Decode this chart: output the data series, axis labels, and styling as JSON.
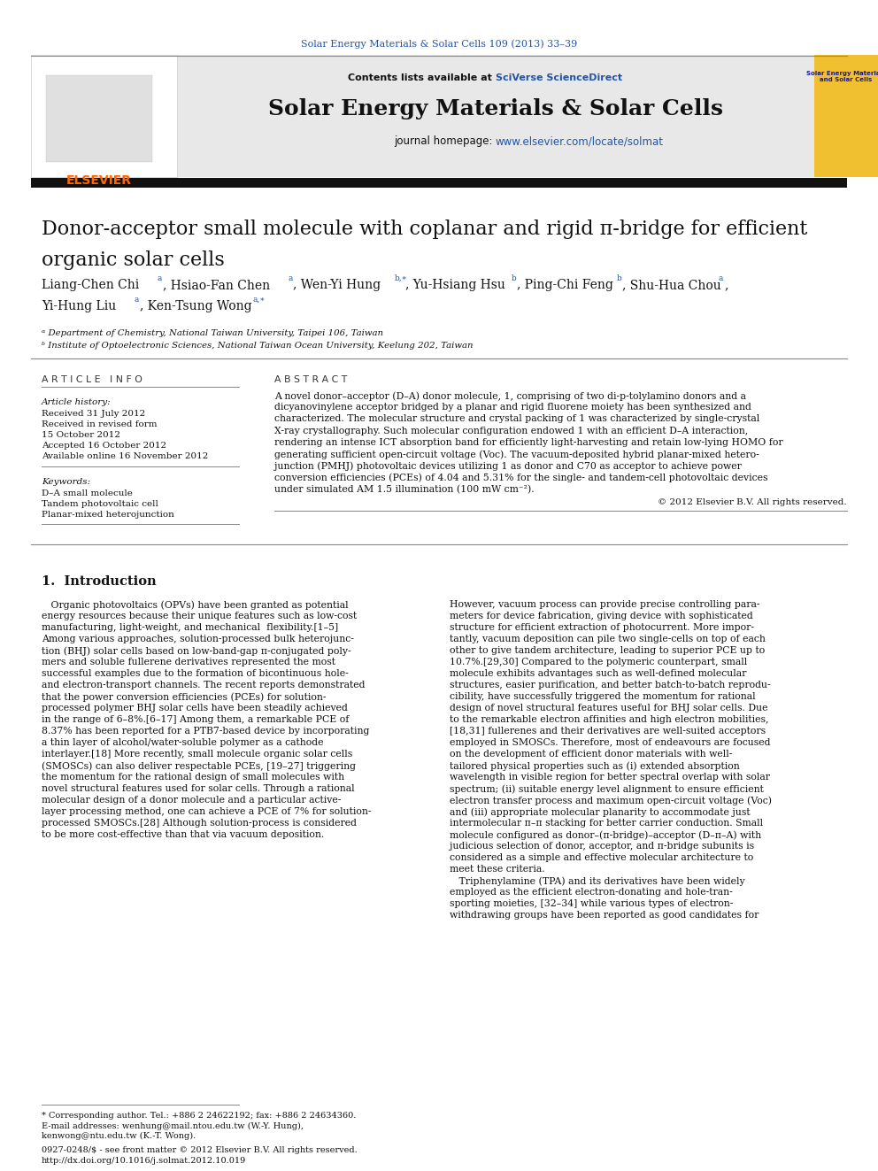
{
  "page_bg": "#ffffff",
  "top_journal_ref": "Solar Energy Materials & Solar Cells 109 (2013) 33–39",
  "top_journal_ref_color": "#2255aa",
  "header_bg": "#e8e8e8",
  "header_contents": "Contents lists available at ",
  "header_sciverse": "SciVerse ScienceDirect",
  "header_sciverse_color": "#2255aa",
  "journal_title": "Solar Energy Materials & Solar Cells",
  "journal_homepage_label": "journal homepage: ",
  "journal_homepage_url": "www.elsevier.com/locate/solmat",
  "journal_homepage_url_color": "#2255aa",
  "thick_bar_color": "#111111",
  "paper_title_line1": "Donor-acceptor small molecule with coplanar and rigid π-bridge for efficient",
  "paper_title_line2": "organic solar cells",
  "affil_a": "ᵅ Department of Chemistry, National Taiwan University, Taipei 106, Taiwan",
  "affil_b": "ᵇ Institute of Optoelectronic Sciences, National Taiwan Ocean University, Keelung 202, Taiwan",
  "section_article_info": "A R T I C L E   I N F O",
  "section_abstract": "A B S T R A C T",
  "article_history_label": "Article history:",
  "received_label": "Received 31 July 2012",
  "revised_label": "Received in revised form",
  "revised_date": "15 October 2012",
  "accepted_label": "Accepted 16 October 2012",
  "available_label": "Available online 16 November 2012",
  "keywords_label": "Keywords:",
  "kw1": "D–A small molecule",
  "kw2": "Tandem photovoltaic cell",
  "kw3": "Planar-mixed heterojunction",
  "abstract_text": "A novel donor–acceptor (D–A) donor molecule, 1, comprising of two di-p-tolylamino donors and a\ndicyanovinylene acceptor bridged by a planar and rigid fluorene moiety has been synthesized and\ncharacterized. The molecular structure and crystal packing of 1 was characterized by single-crystal\nX-ray crystallography. Such molecular configuration endowed 1 with an efficient D–A interaction,\nrendering an intense ICT absorption band for efficiently light-harvesting and retain low-lying HOMO for\ngenerating sufficient open-circuit voltage (Voc). The vacuum-deposited hybrid planar-mixed hetero-\njunction (PMHJ) photovoltaic devices utilizing 1 as donor and C70 as acceptor to achieve power\nconversion efficiencies (PCEs) of 4.04 and 5.31% for the single- and tandem-cell photovoltaic devices\nunder simulated AM 1.5 illumination (100 mW cm⁻²).",
  "copyright": "© 2012 Elsevier B.V. All rights reserved.",
  "intro_heading": "1.  Introduction",
  "intro_col1": [
    "   Organic photovoltaics (OPVs) have been granted as potential",
    "energy resources because their unique features such as low-cost",
    "manufacturing, light-weight, and mechanical  flexibility.[1–5]",
    "Among various approaches, solution-processed bulk heterojunc-",
    "tion (BHJ) solar cells based on low-band-gap π-conjugated poly-",
    "mers and soluble fullerene derivatives represented the most",
    "successful examples due to the formation of bicontinuous hole-",
    "and electron-transport channels. The recent reports demonstrated",
    "that the power conversion efficiencies (PCEs) for solution-",
    "processed polymer BHJ solar cells have been steadily achieved",
    "in the range of 6–8%.[6–17] Among them, a remarkable PCE of",
    "8.37% has been reported for a PTB7-based device by incorporating",
    "a thin layer of alcohol/water-soluble polymer as a cathode",
    "interlayer.[18] More recently, small molecule organic solar cells",
    "(SMOSCs) can also deliver respectable PCEs, [19–27] triggering",
    "the momentum for the rational design of small molecules with",
    "novel structural features used for solar cells. Through a rational",
    "molecular design of a donor molecule and a particular active-",
    "layer processing method, one can achieve a PCE of 7% for solution-",
    "processed SMOSCs.[28] Although solution-process is considered",
    "to be more cost-effective than that via vacuum deposition."
  ],
  "intro_col2": [
    "However, vacuum process can provide precise controlling para-",
    "meters for device fabrication, giving device with sophisticated",
    "structure for efficient extraction of photocurrent. More impor-",
    "tantly, vacuum deposition can pile two single-cells on top of each",
    "other to give tandem architecture, leading to superior PCE up to",
    "10.7%.[29,30] Compared to the polymeric counterpart, small",
    "molecule exhibits advantages such as well-defined molecular",
    "structures, easier purification, and better batch-to-batch reprodu-",
    "cibility, have successfully triggered the momentum for rational",
    "design of novel structural features useful for BHJ solar cells. Due",
    "to the remarkable electron affinities and high electron mobilities,",
    "[18,31] fullerenes and their derivatives are well-suited acceptors",
    "employed in SMOSCs. Therefore, most of endeavours are focused",
    "on the development of efficient donor materials with well-",
    "tailored physical properties such as (i) extended absorption",
    "wavelength in visible region for better spectral overlap with solar",
    "spectrum; (ii) suitable energy level alignment to ensure efficient",
    "electron transfer process and maximum open-circuit voltage (Voc)",
    "and (iii) appropriate molecular planarity to accommodate just",
    "intermolecular π–π stacking for better carrier conduction. Small",
    "molecule configured as donor–(π-bridge)–acceptor (D–π–A) with",
    "judicious selection of donor, acceptor, and π-bridge subunits is",
    "considered as a simple and effective molecular architecture to",
    "meet these criteria.",
    "   Triphenylamine (TPA) and its derivatives have been widely",
    "employed as the efficient electron-donating and hole-tran-",
    "sporting moieties, [32–34] while various types of electron-",
    "withdrawing groups have been reported as good candidates for"
  ],
  "footnote_star": "* Corresponding author. Tel.: +886 2 24622192; fax: +886 2 24634360.",
  "footnote_email1": "E-mail addresses: wenhung@mail.ntou.edu.tw (W.-Y. Hung),",
  "footnote_email2": "kenwong@ntu.edu.tw (K.-T. Wong).",
  "footer_issn": "0927-0248/$ - see front matter © 2012 Elsevier B.V. All rights reserved.",
  "footer_doi": "http://dx.doi.org/10.1016/j.solmat.2012.10.019"
}
